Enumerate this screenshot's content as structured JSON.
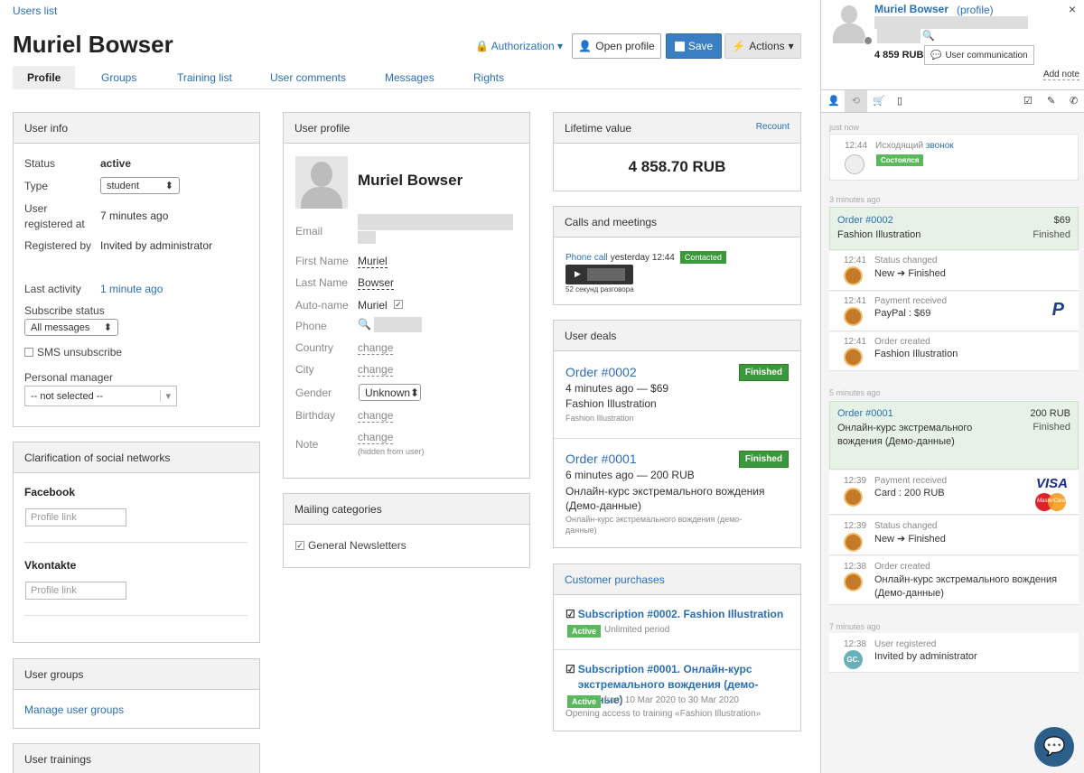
{
  "breadcrumb": "Users list",
  "page_title": "Muriel Bowser",
  "header": {
    "authorization": "Authorization",
    "open_profile": "Open profile",
    "save": "Save",
    "actions": "Actions"
  },
  "tabs": [
    "Profile",
    "Groups",
    "Training list",
    "User comments",
    "Messages",
    "Rights"
  ],
  "user_info": {
    "title": "User info",
    "status_label": "Status",
    "status_value": "active",
    "type_label": "Type",
    "type_value": "student",
    "registered_label_1": "User",
    "registered_label_2": "registered at",
    "registered_value": "7 minutes ago",
    "registered_by_label": "Registered by",
    "registered_by_value": "Invited by administrator",
    "last_activity_label": "Last activity",
    "last_activity_value": "1 minute ago",
    "subscribe_label": "Subscribe status",
    "subscribe_value": "All messages",
    "sms_label": "SMS unsubscribe",
    "manager_label": "Personal manager",
    "manager_value": "-- not selected --"
  },
  "social": {
    "title": "Clarification of social networks",
    "facebook": "Facebook",
    "facebook_placeholder": "Profile link",
    "vkontakte": "Vkontakte",
    "vkontakte_placeholder": "Profile link"
  },
  "groups": {
    "title": "User groups",
    "link": "Manage user groups"
  },
  "trainings": {
    "title": "User trainings"
  },
  "profile": {
    "title": "User profile",
    "name": "Muriel Bowser",
    "email_label": "Email",
    "first_name_label": "First Name",
    "first_name": "Muriel",
    "last_name_label": "Last Name",
    "last_name": "Bowser",
    "autoname_label": "Auto-name",
    "autoname": "Muriel",
    "phone_label": "Phone",
    "country_label": "Country",
    "city_label": "City",
    "change": "change",
    "gender_label": "Gender",
    "gender_value": "Unknown",
    "birthday_label": "Birthday",
    "note_label": "Note",
    "note_hint": "(hidden from user)"
  },
  "mailing": {
    "title": "Mailing categories",
    "item": "General Newsletters"
  },
  "ltv": {
    "title": "Lifetime value",
    "recount": "Recount",
    "value": "4 858.70 RUB"
  },
  "calls": {
    "title": "Calls and meetings",
    "call_link": "Phone call",
    "call_time": "yesterday 12:44",
    "status": "Contacted",
    "duration": "52 секунд разговора"
  },
  "deals": {
    "title": "User deals",
    "items": [
      {
        "order": "Order #0002",
        "meta": "4 minutes ago — $69",
        "name": "Fashion Illustration",
        "sub": "Fashion Illustration",
        "status": "Finished"
      },
      {
        "order": "Order #0001",
        "meta": "6 minutes ago — 200 RUB",
        "name": "Онлайн-курс экстремального вождения (Демо-данные)",
        "sub": "Онлайн-курс экстремального вождения (демо-данные)",
        "status": "Finished"
      }
    ]
  },
  "purchases": {
    "title": "Customer purchases",
    "items": [
      {
        "title": "Subscription #0002. Fashion Illustration",
        "badge": "Active",
        "period": "Unlimited period",
        "note": ""
      },
      {
        "title": "Subscription #0001. Онлайн-курс экстремального вождения (демо-данные)",
        "badge": "Active",
        "period": "from 10 Mar 2020 to 30 Mar 2020",
        "note": "Opening access to training «Fashion Illustration»"
      }
    ]
  },
  "sidebar": {
    "name": "Muriel Bowser",
    "profile_link": "(profile)",
    "balance": "4 859 RUB",
    "communication": "User communication",
    "add_note": "Add note",
    "sections": [
      "just now",
      "3 minutes ago",
      "5 minutes ago",
      "7 minutes ago"
    ],
    "call": {
      "time": "12:44",
      "text1": "Исходящий",
      "text2": "звонок",
      "badge": "Состоялся"
    },
    "order2": {
      "title": "Order #0002",
      "amount": "$69",
      "name": "Fashion Illustration",
      "status": "Finished"
    },
    "order2_events": [
      {
        "time": "12:41",
        "t1": "Status changed",
        "t2": "New ➔ Finished"
      },
      {
        "time": "12:41",
        "t1": "Payment received",
        "t2": "PayPal : $69"
      },
      {
        "time": "12:41",
        "t1": "Order created",
        "t2": "Fashion Illustration"
      }
    ],
    "order1": {
      "title": "Order #0001",
      "amount": "200 RUB",
      "name": "Онлайн-курс экстремального вождения (Демо-данные)",
      "status": "Finished"
    },
    "order1_events": [
      {
        "time": "12:39",
        "t1": "Payment received",
        "t2": "Card : 200 RUB"
      },
      {
        "time": "12:39",
        "t1": "Status changed",
        "t2": "New ➔ Finished"
      },
      {
        "time": "12:38",
        "t1": "Order created",
        "t2": "Онлайн-курс экстремального вождения (Демо-данные)"
      }
    ],
    "registered": {
      "time": "12:38",
      "t1": "User registered",
      "t2": "Invited by administrator",
      "avatar": "GC."
    },
    "visa": "VISA",
    "mastercard": "MasterCard"
  }
}
